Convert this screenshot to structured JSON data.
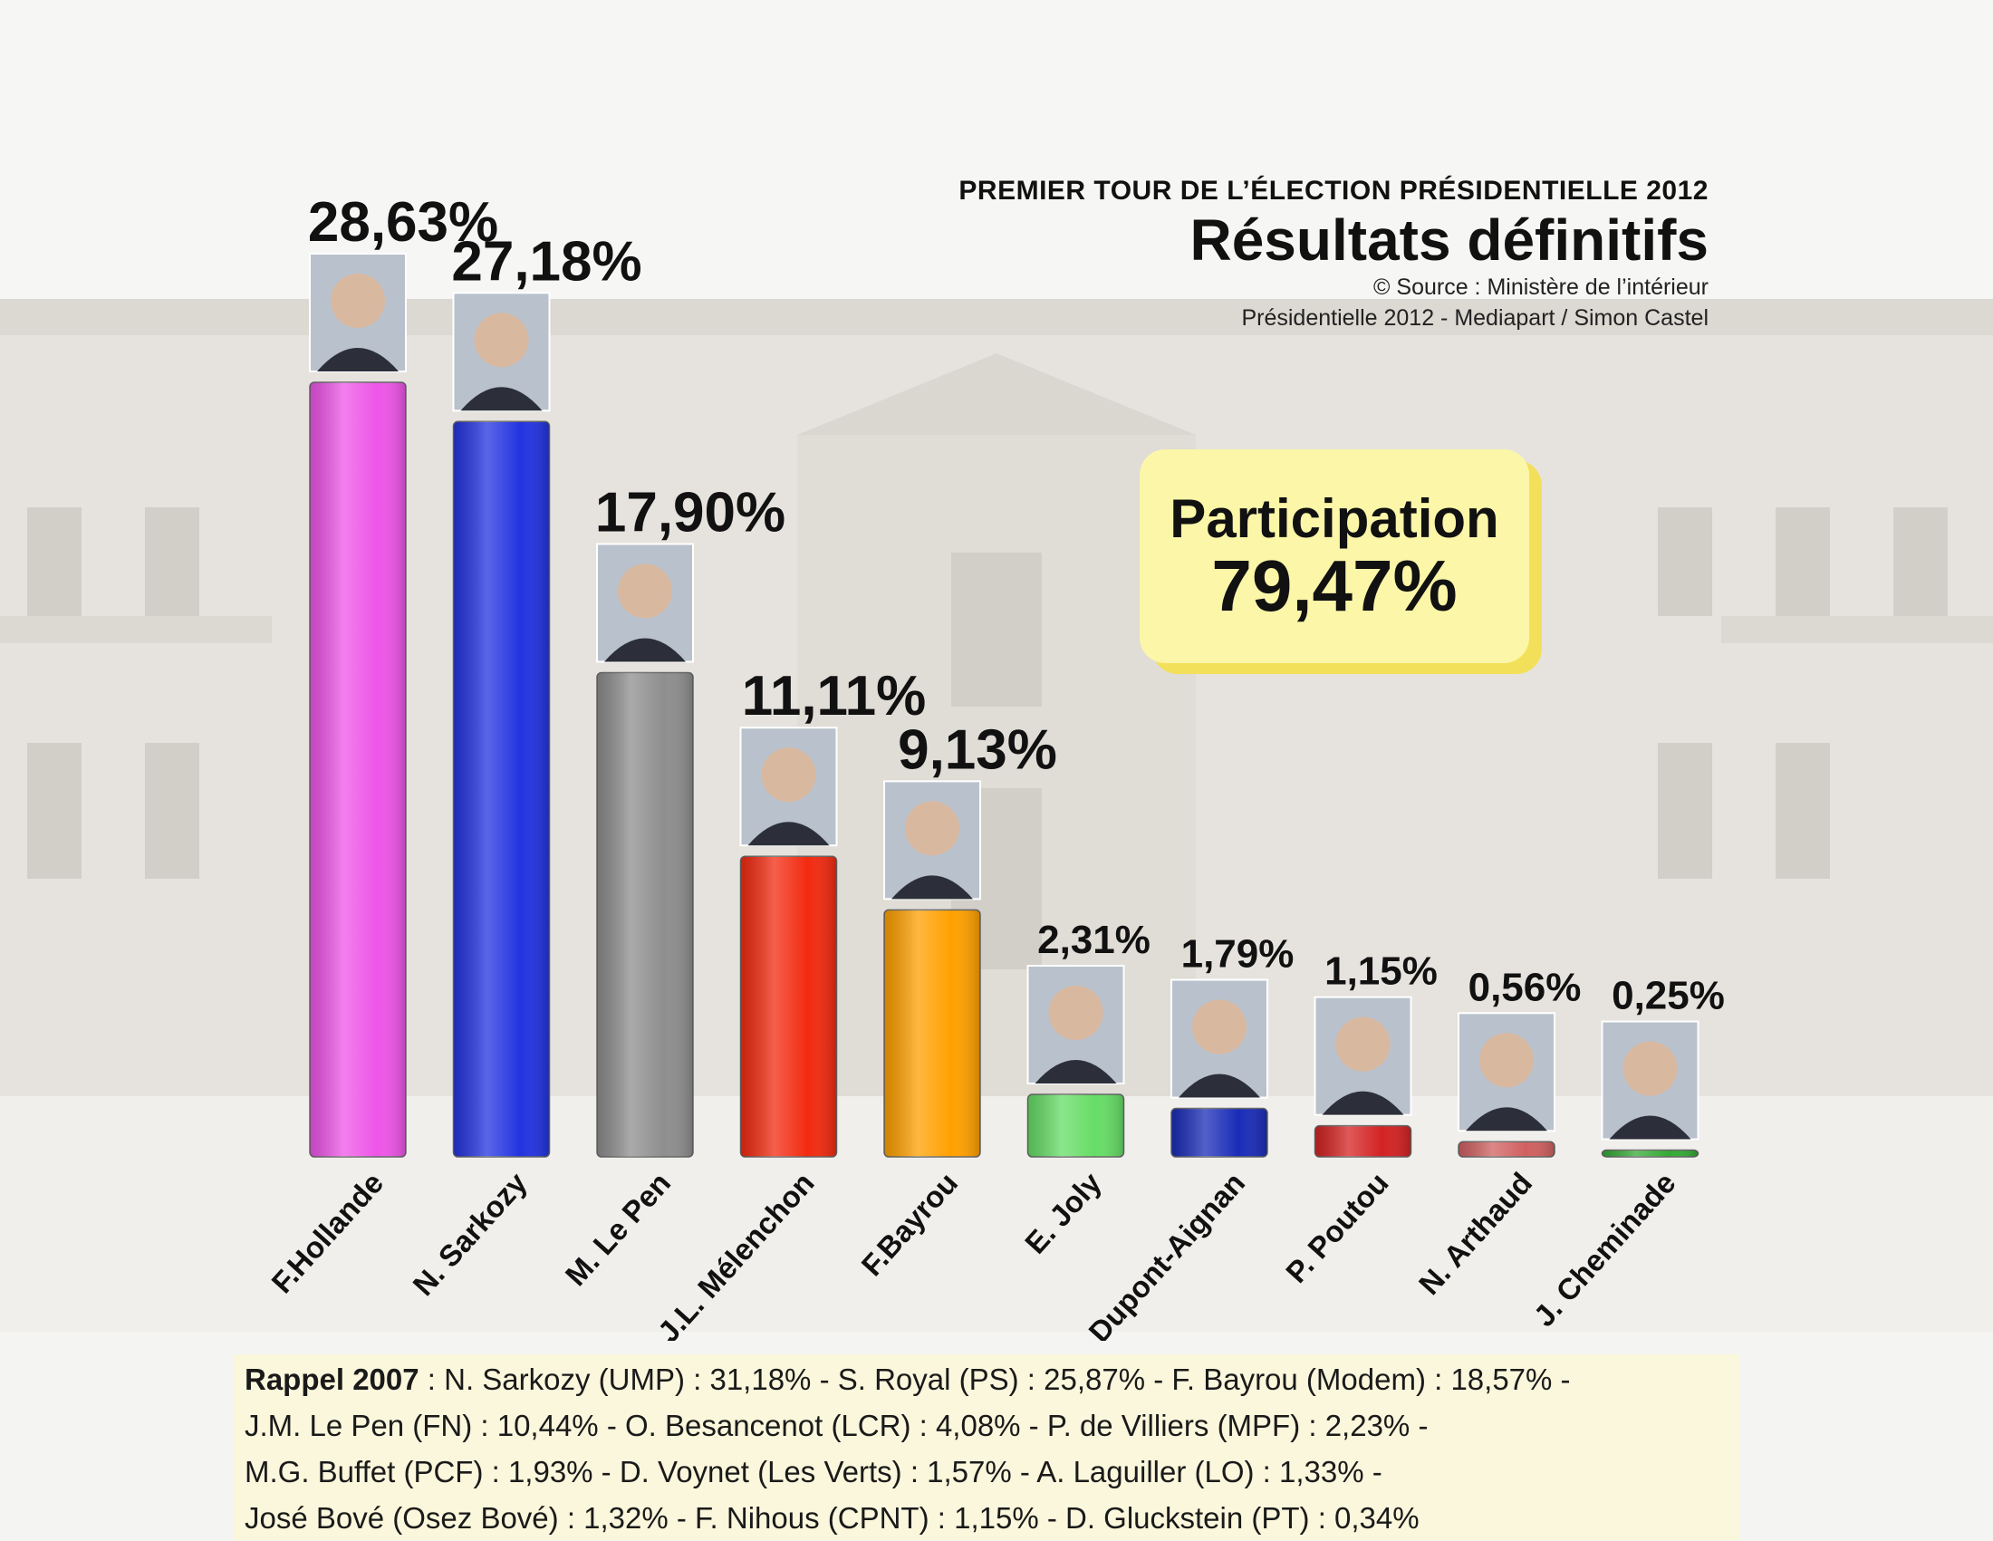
{
  "header": {
    "subtitle": "PREMIER TOUR DE L’ÉLECTION PRÉSIDENTIELLE 2012",
    "title": "Résultats définitifs",
    "source": "© Source : Ministère de l’intérieur",
    "credit": "Présidentielle 2012 - Mediapart / Simon Castel"
  },
  "participation": {
    "label": "Participation",
    "value": "79,47%"
  },
  "chart_data": {
    "type": "bar",
    "title": "Résultats définitifs",
    "categories": [
      "F.Hollande",
      "N. Sarkozy",
      "M. Le Pen",
      "J.L. Mélenchon",
      "F.Bayrou",
      "E. Joly",
      "N. Dupont-Aignan",
      "P. Poutou",
      "N. Arthaud",
      "J. Cheminade"
    ],
    "values": [
      28.63,
      27.18,
      17.9,
      11.11,
      9.13,
      2.31,
      1.79,
      1.15,
      0.56,
      0.25
    ],
    "value_labels": [
      "28,63%",
      "27,18%",
      "17,90%",
      "11,11%",
      "9,13%",
      "2,31%",
      "1,79%",
      "1,15%",
      "0,56%",
      "0,25%"
    ],
    "colors": [
      "#ee55e8",
      "#2233e0",
      "#8e8e8e",
      "#f22a10",
      "#ffa000",
      "#66dd66",
      "#1a2cb8",
      "#d42222",
      "#d06060",
      "#33aa33"
    ],
    "photos": [
      "portrait-hollande",
      "portrait-sarkozy",
      "portrait-le-pen",
      "portrait-melenchon",
      "portrait-bayrou",
      "portrait-joly",
      "portrait-dupont-aignan",
      "portrait-poutou",
      "portrait-arthaud",
      "portrait-cheminade"
    ],
    "ylim": [
      0,
      28.63
    ],
    "grid": false,
    "legend": "none"
  },
  "rappel": {
    "heading": "Rappel 2007",
    "lines": [
      " : N. Sarkozy (UMP) : 31,18% - S. Royal (PS) : 25,87% - F. Bayrou (Modem) : 18,57% -",
      "J.M. Le Pen (FN) : 10,44% - O. Besancenot (LCR) : 4,08% - P. de Villiers (MPF) : 2,23% -",
      "M.G. Buffet (PCF) : 1,93% - D. Voynet (Les Verts) : 1,57% - A. Laguiller (LO) : 1,33% -",
      "José Bové (Osez Bové) : 1,32% - F. Nihous (CPNT) : 1,15% - D. Gluckstein (PT) : 0,34%"
    ]
  }
}
